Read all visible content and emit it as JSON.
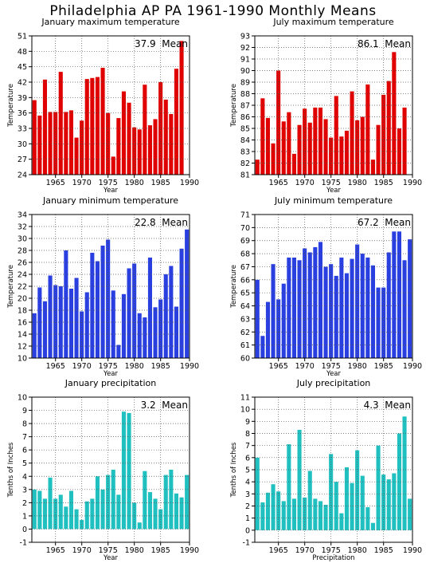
{
  "title": "Philadelphia AP PA   1961-1990  Monthly Means",
  "chart_data": [
    {
      "type": "bar",
      "title": "January maximum temperature",
      "xlabel": "Year",
      "ylabel": "Temperature",
      "annotation": "37.9  Mean",
      "color": "#e00000",
      "x": [
        1961,
        1962,
        1963,
        1964,
        1965,
        1966,
        1967,
        1968,
        1969,
        1970,
        1971,
        1972,
        1973,
        1974,
        1975,
        1976,
        1977,
        1978,
        1979,
        1980,
        1981,
        1982,
        1983,
        1984,
        1985,
        1986,
        1987,
        1988,
        1989,
        1990
      ],
      "values": [
        38.5,
        35.5,
        42.5,
        36.2,
        36.2,
        44.0,
        36.2,
        36.5,
        31.2,
        34.5,
        42.6,
        42.8,
        43.0,
        44.8,
        36.0,
        27.5,
        35.0,
        40.2,
        38.0,
        33.2,
        32.8,
        41.5,
        33.6,
        34.8,
        42.0,
        38.6,
        35.8,
        44.6,
        50.0,
        null
      ],
      "ylim": [
        24,
        51
      ],
      "yticks": [
        24,
        27,
        30,
        33,
        36,
        39,
        42,
        45,
        48,
        51
      ],
      "xticks": [
        1965,
        1970,
        1975,
        1980,
        1985,
        1990
      ]
    },
    {
      "type": "bar",
      "title": "July maximum temperature",
      "xlabel": "Year",
      "ylabel": "Temperature",
      "annotation": "86.1  Mean",
      "color": "#e00000",
      "x": [
        1961,
        1962,
        1963,
        1964,
        1965,
        1966,
        1967,
        1968,
        1969,
        1970,
        1971,
        1972,
        1973,
        1974,
        1975,
        1976,
        1977,
        1978,
        1979,
        1980,
        1981,
        1982,
        1983,
        1984,
        1985,
        1986,
        1987,
        1988,
        1989,
        1990
      ],
      "values": [
        82.3,
        87.6,
        85.9,
        83.7,
        90.0,
        85.6,
        86.4,
        82.8,
        85.3,
        86.7,
        85.5,
        86.8,
        86.8,
        85.8,
        84.2,
        87.8,
        84.3,
        84.8,
        88.2,
        85.7,
        86.0,
        88.8,
        82.3,
        85.3,
        87.9,
        89.1,
        91.6,
        85.0,
        86.8,
        null
      ],
      "ylim": [
        81,
        93
      ],
      "yticks": [
        81,
        82,
        83,
        84,
        85,
        86,
        87,
        88,
        89,
        90,
        91,
        92,
        93
      ],
      "xticks": [
        1965,
        1970,
        1975,
        1980,
        1985,
        1990
      ]
    },
    {
      "type": "bar",
      "title": "January minimum temperature",
      "xlabel": "Year",
      "ylabel": "Temperature",
      "annotation": "22.8  Mean",
      "color": "#2a3fe0",
      "x": [
        1961,
        1962,
        1963,
        1964,
        1965,
        1966,
        1967,
        1968,
        1969,
        1970,
        1971,
        1972,
        1973,
        1974,
        1975,
        1976,
        1977,
        1978,
        1979,
        1980,
        1981,
        1982,
        1983,
        1984,
        1985,
        1986,
        1987,
        1988,
        1989,
        1990
      ],
      "values": [
        17.5,
        21.8,
        19.5,
        23.8,
        22.2,
        22.0,
        28.0,
        21.6,
        23.4,
        17.8,
        21.0,
        27.6,
        26.2,
        28.8,
        29.8,
        21.3,
        12.2,
        20.7,
        25.0,
        25.8,
        17.5,
        16.8,
        26.8,
        18.5,
        19.8,
        24.0,
        25.4,
        18.6,
        28.3,
        31.5
      ],
      "ylim": [
        10,
        34
      ],
      "yticks": [
        10,
        12,
        14,
        16,
        18,
        20,
        22,
        24,
        26,
        28,
        30,
        32,
        34
      ],
      "xticks": [
        1965,
        1970,
        1975,
        1980,
        1985,
        1990
      ]
    },
    {
      "type": "bar",
      "title": "July minimum temperature",
      "xlabel": "Year",
      "ylabel": "Temperature",
      "annotation": "67.2  Mean",
      "color": "#2a3fe0",
      "x": [
        1961,
        1962,
        1963,
        1964,
        1965,
        1966,
        1967,
        1968,
        1969,
        1970,
        1971,
        1972,
        1973,
        1974,
        1975,
        1976,
        1977,
        1978,
        1979,
        1980,
        1981,
        1982,
        1983,
        1984,
        1985,
        1986,
        1987,
        1988,
        1989,
        1990
      ],
      "values": [
        66.0,
        61.7,
        64.3,
        67.2,
        64.5,
        65.7,
        67.7,
        67.7,
        67.5,
        68.4,
        68.1,
        68.5,
        68.9,
        67.0,
        67.2,
        66.3,
        67.7,
        66.5,
        67.6,
        68.7,
        68.0,
        67.7,
        67.1,
        65.4,
        65.4,
        68.1,
        69.7,
        69.7,
        67.5,
        69.1
      ],
      "ylim": [
        60,
        71
      ],
      "yticks": [
        60,
        61,
        62,
        63,
        64,
        65,
        66,
        67,
        68,
        69,
        70,
        71
      ],
      "xticks": [
        1965,
        1970,
        1975,
        1980,
        1985,
        1990
      ]
    },
    {
      "type": "bar",
      "title": "January precipitation",
      "xlabel": "Year",
      "ylabel": "Tenths of Inches",
      "annotation": "3.2  Mean",
      "color": "#20c0c0",
      "x": [
        1961,
        1962,
        1963,
        1964,
        1965,
        1966,
        1967,
        1968,
        1969,
        1970,
        1971,
        1972,
        1973,
        1974,
        1975,
        1976,
        1977,
        1978,
        1979,
        1980,
        1981,
        1982,
        1983,
        1984,
        1985,
        1986,
        1987,
        1988,
        1989,
        1990
      ],
      "values": [
        3.0,
        2.9,
        2.3,
        3.9,
        2.3,
        2.6,
        1.7,
        2.9,
        1.5,
        0.7,
        2.1,
        2.3,
        4.0,
        3.0,
        4.1,
        4.5,
        2.6,
        8.9,
        8.8,
        2.0,
        0.5,
        4.4,
        2.8,
        2.3,
        1.5,
        4.1,
        4.5,
        2.7,
        2.4,
        4.1
      ],
      "ylim": [
        -1,
        10
      ],
      "yticks": [
        -1,
        0,
        1,
        2,
        3,
        4,
        5,
        6,
        7,
        8,
        9,
        10
      ],
      "xticks": [
        1965,
        1970,
        1975,
        1980,
        1985,
        1990
      ]
    },
    {
      "type": "bar",
      "title": "July precipitation",
      "xlabel": "Precipitation",
      "ylabel": "Tenths of Inches",
      "annotation": "4.3  Mean",
      "color": "#20c0c0",
      "x": [
        1961,
        1962,
        1963,
        1964,
        1965,
        1966,
        1967,
        1968,
        1969,
        1970,
        1971,
        1972,
        1973,
        1974,
        1975,
        1976,
        1977,
        1978,
        1979,
        1980,
        1981,
        1982,
        1983,
        1984,
        1985,
        1986,
        1987,
        1988,
        1989,
        1990
      ],
      "values": [
        6.0,
        2.3,
        3.1,
        3.8,
        3.2,
        2.4,
        7.1,
        2.6,
        8.3,
        2.7,
        4.9,
        2.6,
        2.4,
        2.1,
        6.3,
        4.0,
        1.4,
        5.2,
        3.9,
        6.6,
        4.5,
        1.9,
        0.6,
        7.0,
        4.6,
        4.2,
        4.7,
        8.0,
        9.4,
        2.6
      ],
      "ylim": [
        -1,
        11
      ],
      "yticks": [
        -1,
        0,
        1,
        2,
        3,
        4,
        5,
        6,
        7,
        8,
        9,
        10,
        11
      ],
      "xticks": [
        1965,
        1970,
        1975,
        1980,
        1985,
        1990
      ]
    }
  ]
}
